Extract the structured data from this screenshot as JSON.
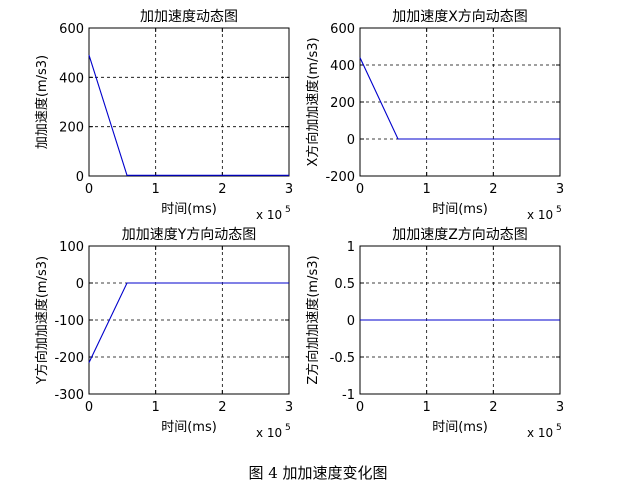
{
  "figure_caption": "图 4  加加速度变化图",
  "chart_data": [
    {
      "type": "line",
      "title": "加加速度动态图",
      "xlabel": "时间(ms)",
      "ylabel": "加加速度(m/s3)",
      "x_multiplier": "x 10^5",
      "x_multiplier_base": "x 10",
      "x_multiplier_exp": "5",
      "xlim": [
        0,
        3
      ],
      "ylim": [
        0,
        600
      ],
      "xticks": [
        0,
        1,
        2,
        3
      ],
      "yticks": [
        0,
        200,
        400,
        600
      ],
      "xtick_labels": [
        "0",
        "1",
        "2",
        "3"
      ],
      "ytick_labels": [
        "0",
        "200",
        "400",
        "600"
      ],
      "grid": true,
      "series": [
        {
          "color": "#0000cc",
          "x": [
            0,
            0.57,
            3
          ],
          "y": [
            490,
            3,
            3
          ]
        }
      ]
    },
    {
      "type": "line",
      "title": "加加速度X方向动态图",
      "xlabel": "时间(ms)",
      "ylabel": "X方向加加速度(m/s3)",
      "x_multiplier": "x 10^5",
      "x_multiplier_base": "x 10",
      "x_multiplier_exp": "5",
      "xlim": [
        0,
        3
      ],
      "ylim": [
        -200,
        600
      ],
      "xticks": [
        0,
        1,
        2,
        3
      ],
      "yticks": [
        -200,
        0,
        200,
        400,
        600
      ],
      "xtick_labels": [
        "0",
        "1",
        "2",
        "3"
      ],
      "ytick_labels": [
        "-200",
        "0",
        "200",
        "400",
        "600"
      ],
      "grid": true,
      "series": [
        {
          "color": "#0000cc",
          "x": [
            0,
            0.57,
            3
          ],
          "y": [
            440,
            0,
            0
          ]
        }
      ]
    },
    {
      "type": "line",
      "title": "加加速度Y方向动态图",
      "xlabel": "时间(ms)",
      "ylabel": "Y方向加加速度(m/s3)",
      "x_multiplier": "x 10^5",
      "x_multiplier_base": "x 10",
      "x_multiplier_exp": "5",
      "xlim": [
        0,
        3
      ],
      "ylim": [
        -300,
        100
      ],
      "xticks": [
        0,
        1,
        2,
        3
      ],
      "yticks": [
        -300,
        -200,
        -100,
        0,
        100
      ],
      "xtick_labels": [
        "0",
        "1",
        "2",
        "3"
      ],
      "ytick_labels": [
        "-300",
        "-200",
        "-100",
        "0",
        "100"
      ],
      "grid": true,
      "series": [
        {
          "color": "#0000cc",
          "x": [
            0,
            0.57,
            3
          ],
          "y": [
            -215,
            0,
            0
          ]
        }
      ]
    },
    {
      "type": "line",
      "title": "加加速度Z方向动态图",
      "xlabel": "时间(ms)",
      "ylabel": "Z方向加加速度(m/s3)",
      "x_multiplier": "x 10^5",
      "x_multiplier_base": "x 10",
      "x_multiplier_exp": "5",
      "xlim": [
        0,
        3
      ],
      "ylim": [
        -1,
        1
      ],
      "xticks": [
        0,
        1,
        2,
        3
      ],
      "yticks": [
        -1,
        -0.5,
        0,
        0.5,
        1
      ],
      "xtick_labels": [
        "0",
        "1",
        "2",
        "3"
      ],
      "ytick_labels": [
        "-1",
        "-0.5",
        "0",
        "0.5",
        "1"
      ],
      "grid": true,
      "series": [
        {
          "color": "#0000cc",
          "x": [
            0,
            3
          ],
          "y": [
            0,
            0
          ]
        }
      ]
    }
  ]
}
